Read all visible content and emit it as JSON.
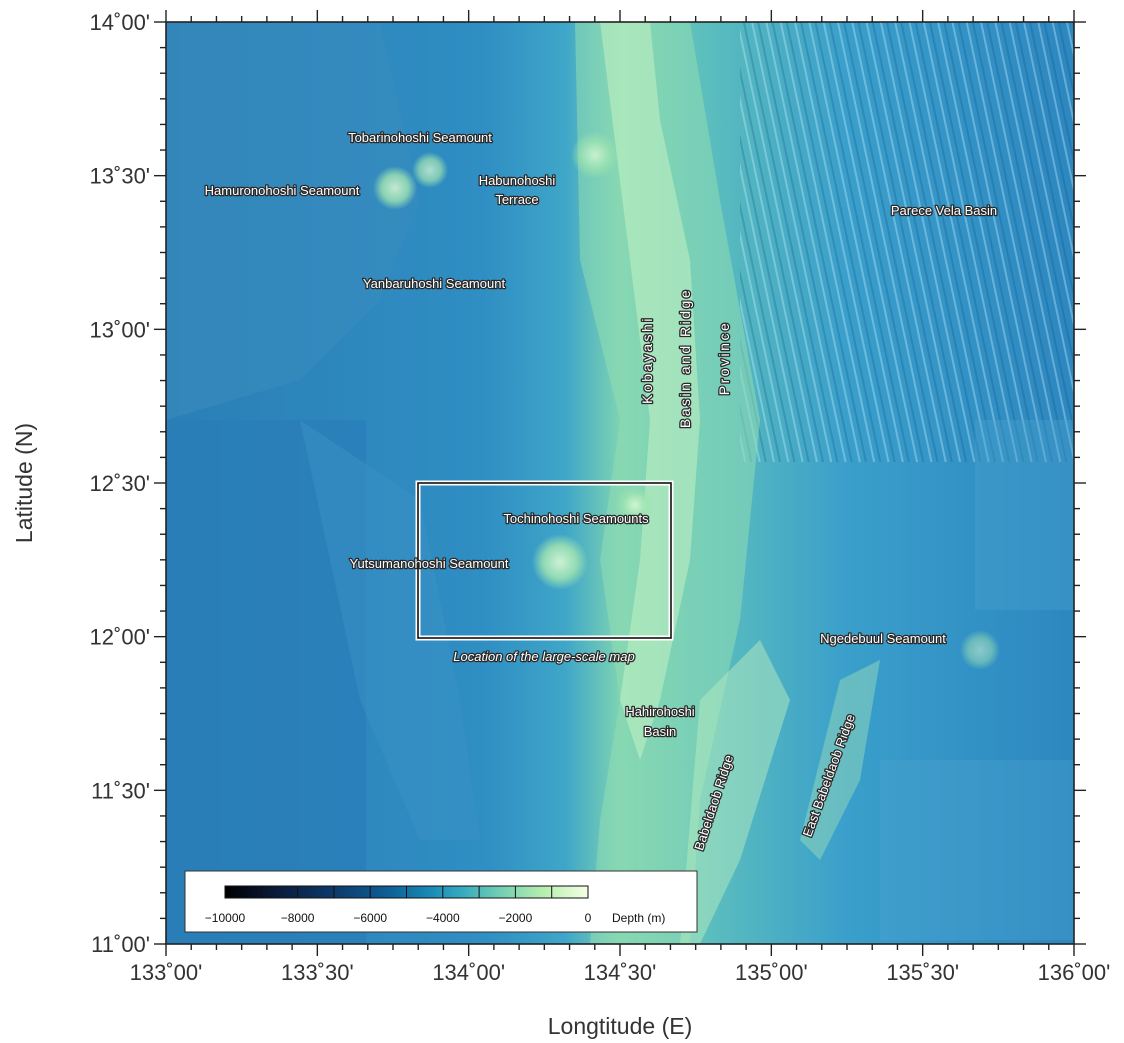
{
  "map": {
    "x_axis": {
      "title": "Longtitude (E)",
      "ticks": [
        {
          "value": 133.0,
          "label": "133˚00'"
        },
        {
          "value": 133.5,
          "label": "133˚30'"
        },
        {
          "value": 134.0,
          "label": "134˚00'"
        },
        {
          "value": 134.5,
          "label": "134˚30'"
        },
        {
          "value": 135.0,
          "label": "135˚00'"
        },
        {
          "value": 135.5,
          "label": "135˚30'"
        },
        {
          "value": 136.0,
          "label": "136˚00'"
        }
      ],
      "range": [
        133.0,
        136.0
      ]
    },
    "y_axis": {
      "title": "Latitude (N)",
      "ticks": [
        {
          "value": 11.0,
          "label": "11˚00'"
        },
        {
          "value": 11.5,
          "label": "11˚30'"
        },
        {
          "value": 12.0,
          "label": "12˚00'"
        },
        {
          "value": 12.5,
          "label": "12˚30'"
        },
        {
          "value": 13.0,
          "label": "13˚00'"
        },
        {
          "value": 13.5,
          "label": "13˚30'"
        },
        {
          "value": 14.0,
          "label": "14˚00'"
        }
      ],
      "range": [
        11.0,
        14.0
      ]
    },
    "features": [
      {
        "name": "Tobarinohoshi Seamount",
        "lines": [
          "Tobarinohoshi Seamount"
        ]
      },
      {
        "name": "Hamuronohoshi Seamount",
        "lines": [
          "Hamuronohoshi Seamount"
        ]
      },
      {
        "name": "Habunohoshi Terrace",
        "lines": [
          "Habunohoshi",
          "Terrace"
        ]
      },
      {
        "name": "Parece Vela Basin",
        "lines": [
          "Parece Vela Basin"
        ]
      },
      {
        "name": "Yanbaruhoshi Seamount",
        "lines": [
          "Yanbaruhoshi Seamount"
        ]
      },
      {
        "name": "Kobayashi",
        "lines": [
          "Kobayashi"
        ]
      },
      {
        "name": "Basin and Ridge",
        "lines": [
          "Basin and Ridge"
        ]
      },
      {
        "name": "Province",
        "lines": [
          "Province"
        ]
      },
      {
        "name": "Tochinohoshi Seamounts",
        "lines": [
          "Tochinohoshi Seamounts"
        ]
      },
      {
        "name": "Yutsumanohoshi Seamount",
        "lines": [
          "Yutsumanohoshi Seamount"
        ]
      },
      {
        "name": "Ngedebuul Seamount",
        "lines": [
          "Ngedebuul Seamount"
        ]
      },
      {
        "name": "Hahirohoshi Basin",
        "lines": [
          "Hahirohoshi",
          "Basin"
        ]
      },
      {
        "name": "Babeldaob Ridge",
        "lines": [
          "Babeldaob Ridge"
        ]
      },
      {
        "name": "East Babeldaob Ridge",
        "lines": [
          "East Babeldaob Ridge"
        ]
      }
    ],
    "inset": {
      "caption": "Location of the large-scale map",
      "lon_range": [
        133.833,
        134.667
      ],
      "lat_range": [
        12.0,
        12.5
      ]
    },
    "legend": {
      "title": "Depth (m)",
      "tick_labels": [
        "−10000",
        "−8000",
        "−6000",
        "−4000",
        "−2000",
        "0"
      ],
      "range": [
        -10000,
        0
      ],
      "colors": [
        "#000000",
        "#0a1c3d",
        "#0d3a6b",
        "#0e5f95",
        "#1784b2",
        "#34a9bf",
        "#6fcbb3",
        "#b7efb0",
        "#f4ffe6"
      ]
    },
    "colors": {
      "deep": "#1e6fa8",
      "mid": "#2f95c4",
      "shallow": "#8fe0a8",
      "ridge": "#d9f7c8"
    }
  }
}
